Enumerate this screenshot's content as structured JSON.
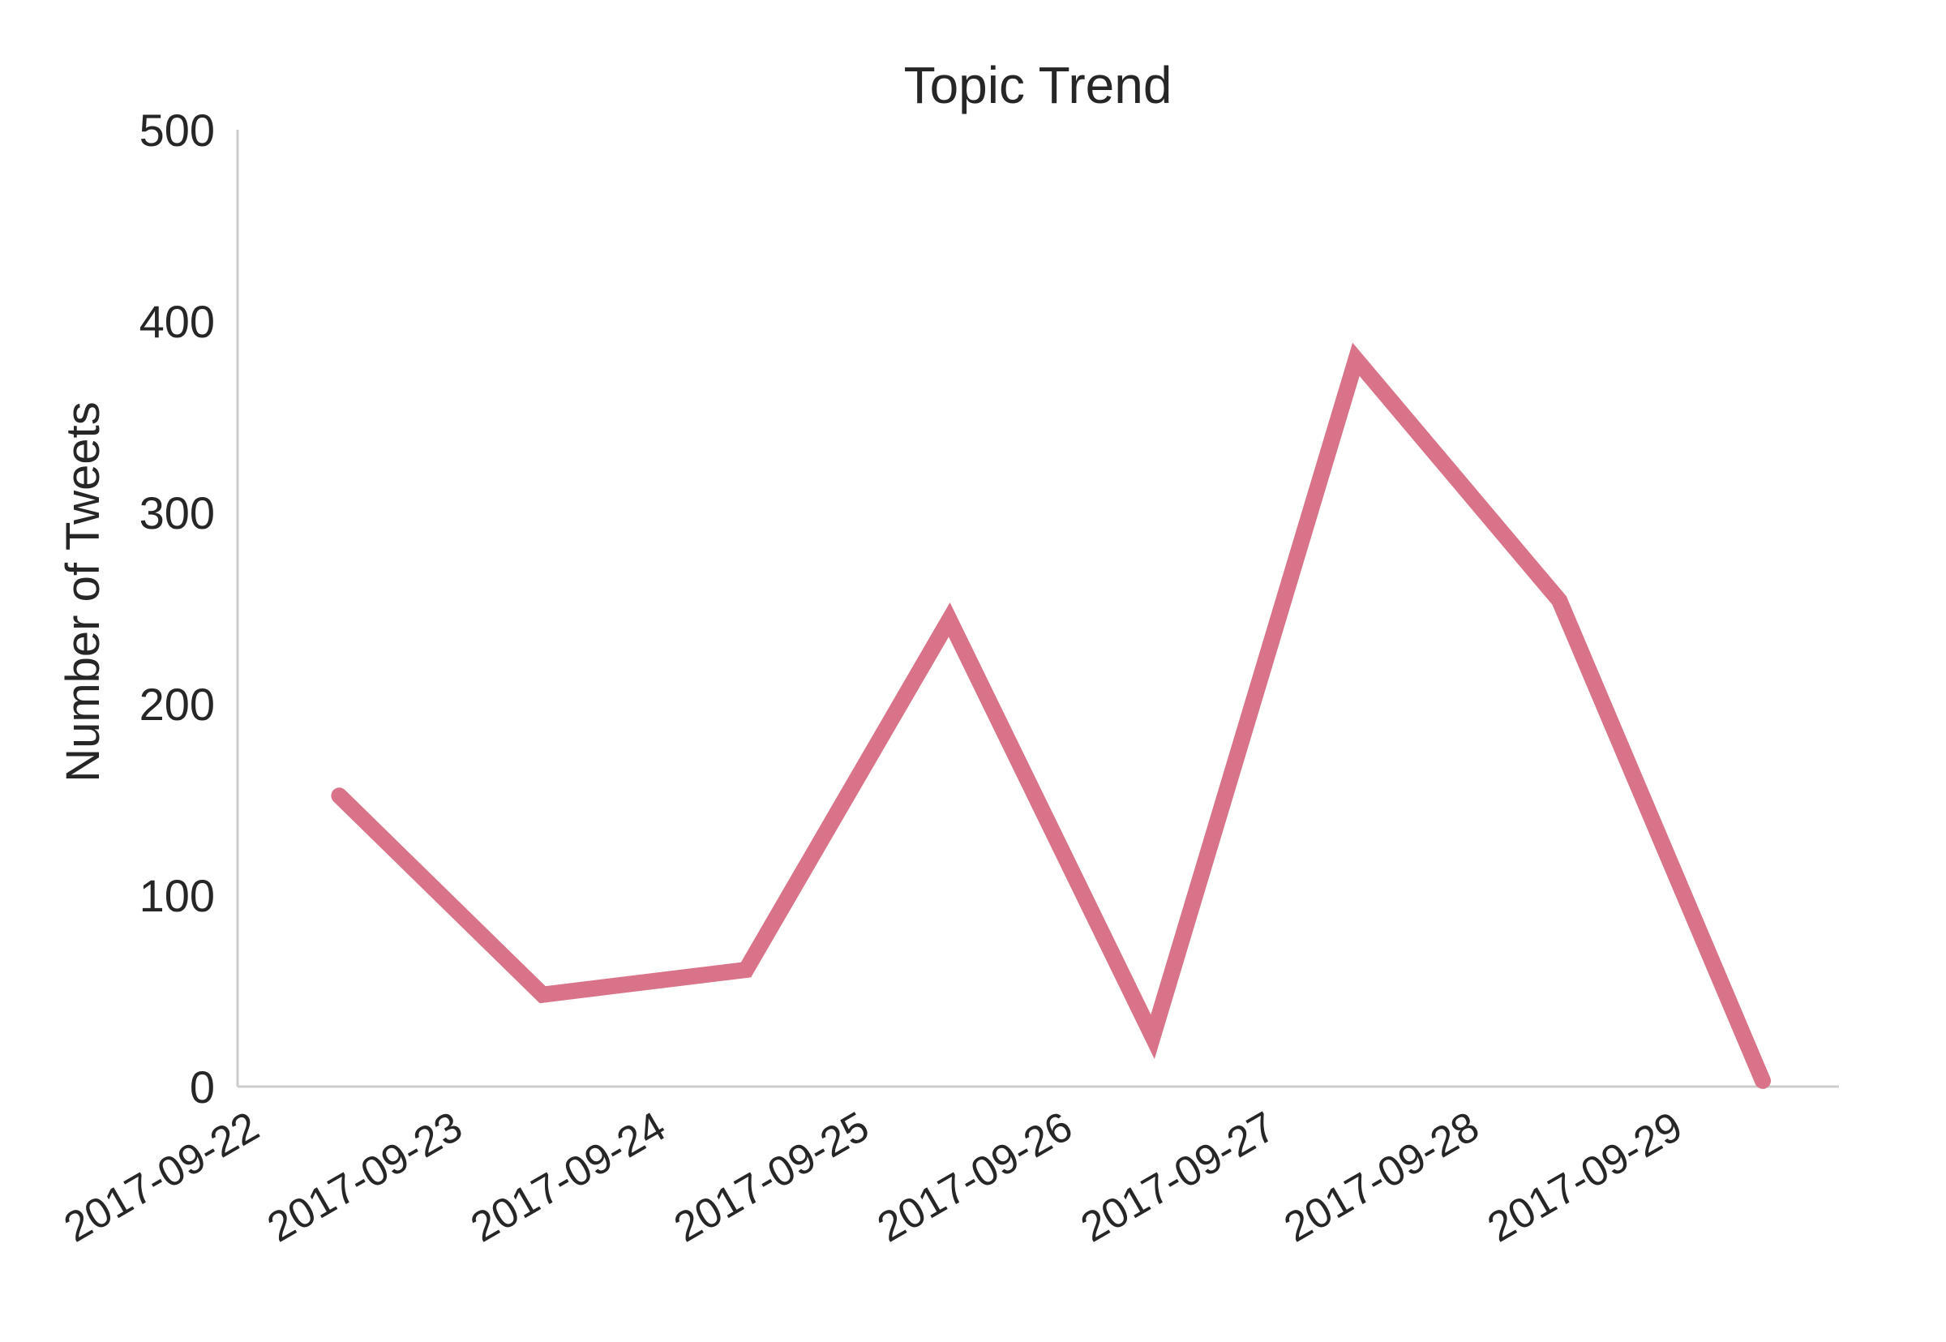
{
  "chart_data": {
    "type": "line",
    "title": "Topic Trend",
    "xlabel": "",
    "ylabel": "Number of Tweets",
    "x": [
      "2017-09-22",
      "2017-09-23",
      "2017-09-24",
      "2017-09-25",
      "2017-09-26",
      "2017-09-27",
      "2017-09-28",
      "2017-09-29"
    ],
    "series": [
      {
        "x": [
          "2017-09-22T12:00",
          "2017-09-23T12:00",
          "2017-09-24T12:00",
          "2017-09-25T12:00",
          "2017-09-26T12:00",
          "2017-09-27T12:00",
          "2017-09-28T12:00",
          "2017-09-29T12:00"
        ],
        "values": [
          152,
          48,
          61,
          244,
          26,
          380,
          254,
          3
        ],
        "color": "#d87389"
      }
    ],
    "yticks": [
      0,
      100,
      200,
      300,
      400,
      500
    ],
    "ylim": [
      0,
      500
    ],
    "xlim": [
      "2017-09-22T00:00",
      "2017-09-29T21:00"
    ],
    "grid": false,
    "legend": "none",
    "axis_color": "#cccccc"
  }
}
